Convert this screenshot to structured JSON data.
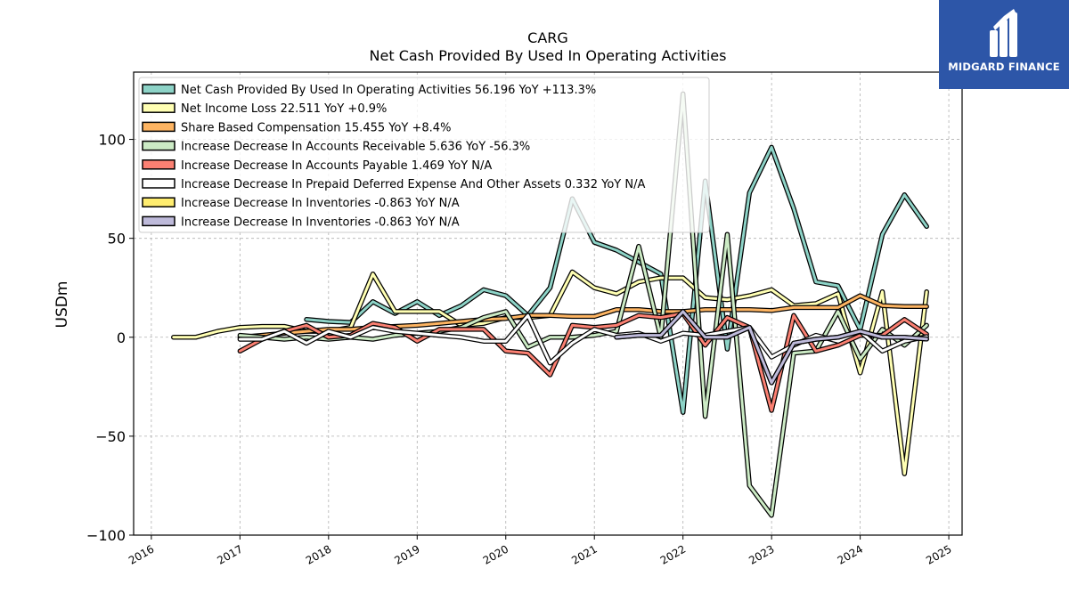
{
  "brand": {
    "name": "MIDGARD FINANCE",
    "bg_color": "#2d56a8"
  },
  "chart_data": {
    "type": "line",
    "title": "CARG",
    "subtitle": "Net Cash Provided By Used In Operating Activities",
    "ylabel": "USDm",
    "xlim": [
      2015.8,
      2025.15
    ],
    "ylim": [
      -100,
      134
    ],
    "grid": true,
    "legend_position": "top-left",
    "x_ticks": [
      2016,
      2017,
      2018,
      2019,
      2020,
      2021,
      2022,
      2023,
      2024,
      2025
    ],
    "y_ticks": [
      -100,
      -50,
      0,
      50,
      100
    ],
    "y_tick_labels": [
      "−100",
      "−50",
      "0",
      "50",
      "100"
    ],
    "series": [
      {
        "name": "Net Cash Provided By Used In Operating Activities  56.196 YoY +113.3%",
        "color": "#8dd3c7",
        "points": [
          [
            2017.75,
            9
          ],
          [
            2018.0,
            8
          ],
          [
            2018.25,
            7.5
          ],
          [
            2018.5,
            18
          ],
          [
            2018.75,
            12
          ],
          [
            2019.0,
            18
          ],
          [
            2019.25,
            11
          ],
          [
            2019.5,
            16
          ],
          [
            2019.75,
            24
          ],
          [
            2020.0,
            21
          ],
          [
            2020.25,
            11
          ],
          [
            2020.5,
            25
          ],
          [
            2020.75,
            70
          ],
          [
            2021.0,
            48
          ],
          [
            2021.25,
            44
          ],
          [
            2021.5,
            38
          ],
          [
            2021.75,
            32
          ],
          [
            2022.0,
            -38
          ],
          [
            2022.25,
            79
          ],
          [
            2022.5,
            -6
          ],
          [
            2022.75,
            73
          ],
          [
            2023.0,
            96
          ],
          [
            2023.25,
            65
          ],
          [
            2023.5,
            28
          ],
          [
            2023.75,
            26
          ],
          [
            2024.0,
            4
          ],
          [
            2024.25,
            52
          ],
          [
            2024.5,
            72
          ],
          [
            2024.75,
            56
          ]
        ]
      },
      {
        "name": "Net Income Loss  22.511 YoY +0.9%",
        "color": "#ffffb3",
        "points": [
          [
            2016.25,
            0
          ],
          [
            2016.5,
            0
          ],
          [
            2016.75,
            3
          ],
          [
            2017.0,
            5
          ],
          [
            2017.25,
            5.5
          ],
          [
            2017.5,
            5.5
          ],
          [
            2017.75,
            3
          ],
          [
            2018.0,
            3
          ],
          [
            2018.25,
            5
          ],
          [
            2018.5,
            32
          ],
          [
            2018.75,
            13
          ],
          [
            2019.0,
            13
          ],
          [
            2019.25,
            13
          ],
          [
            2019.5,
            6
          ],
          [
            2019.75,
            7
          ],
          [
            2020.0,
            10
          ],
          [
            2020.25,
            10
          ],
          [
            2020.5,
            11
          ],
          [
            2020.75,
            33
          ],
          [
            2021.0,
            25
          ],
          [
            2021.25,
            22
          ],
          [
            2021.5,
            28
          ],
          [
            2021.75,
            30
          ],
          [
            2022.0,
            30
          ],
          [
            2022.25,
            20
          ],
          [
            2022.5,
            19
          ],
          [
            2022.75,
            21
          ],
          [
            2023.0,
            24
          ],
          [
            2023.25,
            16
          ],
          [
            2023.5,
            17
          ],
          [
            2023.75,
            22
          ],
          [
            2024.0,
            -18
          ],
          [
            2024.25,
            23
          ],
          [
            2024.5,
            -69
          ],
          [
            2024.75,
            23
          ]
        ]
      },
      {
        "name": "Share Based Compensation  15.455 YoY +8.4%",
        "color": "#fdb462",
        "points": [
          [
            2017.0,
            0
          ],
          [
            2017.25,
            1
          ],
          [
            2017.5,
            2
          ],
          [
            2017.75,
            3
          ],
          [
            2018.0,
            4
          ],
          [
            2018.25,
            4
          ],
          [
            2018.5,
            5
          ],
          [
            2018.75,
            5.5
          ],
          [
            2019.0,
            6
          ],
          [
            2019.25,
            7
          ],
          [
            2019.5,
            8
          ],
          [
            2019.75,
            9
          ],
          [
            2020.0,
            9.5
          ],
          [
            2020.25,
            11
          ],
          [
            2020.5,
            11
          ],
          [
            2020.75,
            10.5
          ],
          [
            2021.0,
            10.5
          ],
          [
            2021.25,
            14
          ],
          [
            2021.5,
            14
          ],
          [
            2021.75,
            13
          ],
          [
            2022.0,
            13
          ],
          [
            2022.25,
            14
          ],
          [
            2022.5,
            14
          ],
          [
            2022.75,
            14
          ],
          [
            2023.0,
            13.5
          ],
          [
            2023.25,
            15
          ],
          [
            2023.5,
            15
          ],
          [
            2023.75,
            15
          ],
          [
            2024.0,
            21
          ],
          [
            2024.25,
            16
          ],
          [
            2024.5,
            15.5
          ],
          [
            2024.75,
            15.5
          ]
        ]
      },
      {
        "name": "Increase Decrease In Accounts Receivable  5.636 YoY -56.3%",
        "color": "#ccebc5",
        "points": [
          [
            2017.0,
            1
          ],
          [
            2017.25,
            0
          ],
          [
            2017.5,
            -1
          ],
          [
            2017.75,
            0
          ],
          [
            2018.0,
            -1
          ],
          [
            2018.25,
            0
          ],
          [
            2018.5,
            -1
          ],
          [
            2018.75,
            1
          ],
          [
            2019.0,
            2
          ],
          [
            2019.25,
            3
          ],
          [
            2019.5,
            5
          ],
          [
            2019.75,
            10
          ],
          [
            2020.0,
            13
          ],
          [
            2020.25,
            -5
          ],
          [
            2020.5,
            0
          ],
          [
            2020.75,
            0
          ],
          [
            2021.0,
            1
          ],
          [
            2021.25,
            3
          ],
          [
            2021.5,
            46
          ],
          [
            2021.75,
            0
          ],
          [
            2022.0,
            123
          ],
          [
            2022.25,
            -40
          ],
          [
            2022.5,
            52
          ],
          [
            2022.75,
            -75
          ],
          [
            2023.0,
            -90
          ],
          [
            2023.25,
            -8
          ],
          [
            2023.5,
            -7
          ],
          [
            2023.75,
            13
          ],
          [
            2024.0,
            -11
          ],
          [
            2024.25,
            4
          ],
          [
            2024.5,
            -4
          ],
          [
            2024.75,
            6
          ]
        ]
      },
      {
        "name": "Increase Decrease In Accounts Payable  1.469 YoY N/A",
        "color": "#fb8072",
        "points": [
          [
            2017.0,
            -7
          ],
          [
            2017.25,
            -1
          ],
          [
            2017.5,
            3
          ],
          [
            2017.75,
            6
          ],
          [
            2018.0,
            0
          ],
          [
            2018.25,
            1
          ],
          [
            2018.5,
            7
          ],
          [
            2018.75,
            5
          ],
          [
            2019.0,
            -2
          ],
          [
            2019.25,
            4
          ],
          [
            2019.5,
            4
          ],
          [
            2019.75,
            4
          ],
          [
            2020.0,
            -7
          ],
          [
            2020.25,
            -8
          ],
          [
            2020.5,
            -19
          ],
          [
            2020.75,
            6
          ],
          [
            2021.0,
            5
          ],
          [
            2021.25,
            6
          ],
          [
            2021.5,
            11
          ],
          [
            2021.75,
            10
          ],
          [
            2022.0,
            12
          ],
          [
            2022.25,
            -4
          ],
          [
            2022.5,
            10
          ],
          [
            2022.75,
            5
          ],
          [
            2023.0,
            -37
          ],
          [
            2023.25,
            11
          ],
          [
            2023.5,
            -7
          ],
          [
            2023.75,
            -4
          ],
          [
            2024.0,
            1
          ],
          [
            2024.25,
            1
          ],
          [
            2024.5,
            9
          ],
          [
            2024.75,
            1.5
          ]
        ]
      },
      {
        "name": "Increase Decrease In Prepaid Deferred Expense And Other Assets  0.332 YoY N/A",
        "color": "#ffffff",
        "points": [
          [
            2017.0,
            -1
          ],
          [
            2017.25,
            -1
          ],
          [
            2017.5,
            3
          ],
          [
            2017.75,
            -3
          ],
          [
            2018.0,
            3
          ],
          [
            2018.25,
            0
          ],
          [
            2018.5,
            5
          ],
          [
            2018.75,
            3
          ],
          [
            2019.0,
            2
          ],
          [
            2019.25,
            1
          ],
          [
            2019.5,
            0
          ],
          [
            2019.75,
            -2
          ],
          [
            2020.0,
            -2
          ],
          [
            2020.25,
            11
          ],
          [
            2020.5,
            -13
          ],
          [
            2020.75,
            -3
          ],
          [
            2021.0,
            4
          ],
          [
            2021.25,
            1
          ],
          [
            2021.5,
            2
          ],
          [
            2021.75,
            -2
          ],
          [
            2022.0,
            2
          ],
          [
            2022.25,
            1
          ],
          [
            2022.5,
            3
          ],
          [
            2022.75,
            5
          ],
          [
            2023.0,
            -10
          ],
          [
            2023.25,
            -4
          ],
          [
            2023.5,
            1
          ],
          [
            2023.75,
            -2
          ],
          [
            2024.0,
            3
          ],
          [
            2024.25,
            -7
          ],
          [
            2024.5,
            -2
          ],
          [
            2024.75,
            0.3
          ]
        ]
      },
      {
        "name": "Increase Decrease In Inventories  -0.863 YoY N/A",
        "color": "#ffed6f",
        "points": [
          [
            2021.25,
            0
          ],
          [
            2021.5,
            1
          ],
          [
            2021.75,
            1
          ],
          [
            2022.0,
            13
          ],
          [
            2022.25,
            0
          ],
          [
            2022.5,
            0
          ],
          [
            2022.75,
            5
          ],
          [
            2023.0,
            -23
          ],
          [
            2023.25,
            -3
          ],
          [
            2023.5,
            -1
          ],
          [
            2023.75,
            0
          ],
          [
            2024.0,
            3
          ],
          [
            2024.25,
            0
          ],
          [
            2024.5,
            0
          ],
          [
            2024.75,
            -0.9
          ]
        ]
      },
      {
        "name": "Increase Decrease In Inventories  -0.863 YoY N/A",
        "color": "#bebada",
        "points": [
          [
            2021.25,
            0
          ],
          [
            2021.5,
            1
          ],
          [
            2021.75,
            1
          ],
          [
            2022.0,
            13
          ],
          [
            2022.25,
            0
          ],
          [
            2022.5,
            0
          ],
          [
            2022.75,
            5
          ],
          [
            2023.0,
            -23
          ],
          [
            2023.25,
            -3
          ],
          [
            2023.5,
            -1
          ],
          [
            2023.75,
            0
          ],
          [
            2024.0,
            3
          ],
          [
            2024.25,
            0
          ],
          [
            2024.5,
            0
          ],
          [
            2024.75,
            -0.9
          ]
        ]
      }
    ]
  }
}
